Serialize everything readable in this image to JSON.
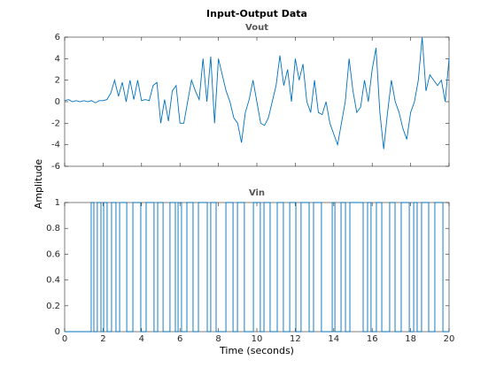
{
  "figure": {
    "title": "Input-Output Data",
    "xlabel": "Time (seconds)",
    "ylabel": "Amplitude"
  },
  "chart_data": [
    {
      "type": "line",
      "title": "Vout",
      "color": "#0072bd",
      "xlim": [
        0,
        20
      ],
      "ylim": [
        -6,
        6
      ],
      "xticks": [
        0,
        2,
        4,
        6,
        8,
        10,
        12,
        14,
        16,
        18,
        20
      ],
      "show_xtick_labels": false,
      "yticks": [
        -6,
        -4,
        -2,
        0,
        2,
        4,
        6
      ],
      "x": [
        0,
        0.2,
        0.4,
        0.6,
        0.8,
        1,
        1.2,
        1.4,
        1.6,
        1.8,
        2,
        2.2,
        2.4,
        2.6,
        2.8,
        3,
        3.2,
        3.4,
        3.6,
        3.8,
        4,
        4.2,
        4.4,
        4.6,
        4.8,
        5,
        5.2,
        5.4,
        5.6,
        5.8,
        6,
        6.2,
        6.4,
        6.6,
        6.8,
        7,
        7.2,
        7.4,
        7.6,
        7.8,
        8,
        8.2,
        8.4,
        8.6,
        8.8,
        9,
        9.2,
        9.4,
        9.6,
        9.8,
        10,
        10.2,
        10.4,
        10.6,
        10.8,
        11,
        11.2,
        11.4,
        11.6,
        11.8,
        12,
        12.2,
        12.4,
        12.6,
        12.8,
        13,
        13.2,
        13.4,
        13.6,
        13.8,
        14,
        14.2,
        14.4,
        14.6,
        14.8,
        15,
        15.2,
        15.4,
        15.6,
        15.8,
        16,
        16.2,
        16.4,
        16.6,
        16.8,
        17,
        17.2,
        17.4,
        17.6,
        17.8,
        18,
        18.2,
        18.4,
        18.6,
        18.8,
        19,
        19.2,
        19.4,
        19.6,
        19.8,
        20
      ],
      "values": [
        0.1,
        0.2,
        0,
        0.1,
        0,
        0.1,
        0,
        0.1,
        -0.1,
        0.1,
        0.1,
        0.2,
        0.8,
        2,
        0.5,
        1.8,
        0,
        2,
        0.2,
        2,
        0.1,
        0.2,
        0.1,
        1.5,
        1.8,
        -2,
        0.2,
        -1.8,
        1,
        1.5,
        -2,
        -2,
        0,
        2,
        1,
        0.2,
        4,
        0,
        4.2,
        -2,
        4,
        2.5,
        1,
        0,
        -1.5,
        -2,
        -3.8,
        -1,
        0.2,
        2,
        0,
        -2,
        -2.2,
        -1.5,
        0,
        1.5,
        4.3,
        1.5,
        3,
        0,
        4,
        2,
        3.5,
        0,
        -1,
        2,
        -1,
        -1.2,
        0,
        -2,
        -3,
        -4,
        -2,
        0,
        4,
        1,
        -1,
        -0.5,
        2,
        0,
        3,
        5,
        -1,
        -4.4,
        -1,
        2,
        0,
        -1,
        -2.5,
        -3.5,
        -1,
        0,
        2,
        6,
        1,
        2.5,
        2,
        1.5,
        2,
        0,
        4
      ]
    },
    {
      "type": "stairs",
      "title": "Vin",
      "color": "#0072bd",
      "xlim": [
        0,
        20
      ],
      "ylim": [
        0,
        1
      ],
      "xticks": [
        0,
        2,
        4,
        6,
        8,
        10,
        12,
        14,
        16,
        18,
        20
      ],
      "yticks": [
        0,
        0.2,
        0.4,
        0.6,
        0.8,
        1
      ],
      "x": [
        0,
        1.38,
        1.52,
        1.7,
        1.89,
        2.03,
        2.21,
        2.44,
        2.67,
        2.86,
        3.23,
        3.55,
        3.96,
        4.24,
        4.65,
        4.84,
        5.12,
        5.48,
        5.76,
        5.9,
        6.08,
        6.36,
        6.68,
        6.96,
        7.42,
        7.6,
        7.88,
        8.39,
        8.76,
        8.99,
        9.35,
        9.82,
        10.18,
        10.37,
        10.69,
        11.06,
        11.38,
        11.71,
        12.03,
        12.3,
        12.72,
        12.95,
        13.36,
        13.92,
        14.06,
        14.38,
        14.61,
        14.84,
        15.53,
        15.76,
        15.94,
        16.22,
        16.5,
        16.91,
        17.19,
        17.51,
        17.93,
        18.16,
        18.34,
        18.57,
        18.94,
        19.26,
        19.68
      ],
      "values": [
        0,
        1,
        0,
        1,
        0,
        1,
        0,
        1,
        0,
        1,
        0,
        1,
        0,
        1,
        0,
        1,
        0,
        1,
        0,
        1,
        0,
        1,
        0,
        1,
        0,
        1,
        0,
        1,
        0,
        1,
        0,
        1,
        0,
        1,
        0,
        1,
        0,
        1,
        0,
        1,
        0,
        1,
        0,
        1,
        0,
        1,
        0,
        1,
        0,
        1,
        0,
        1,
        0,
        1,
        0,
        1,
        0,
        1,
        0,
        1,
        0,
        1,
        0
      ]
    }
  ]
}
